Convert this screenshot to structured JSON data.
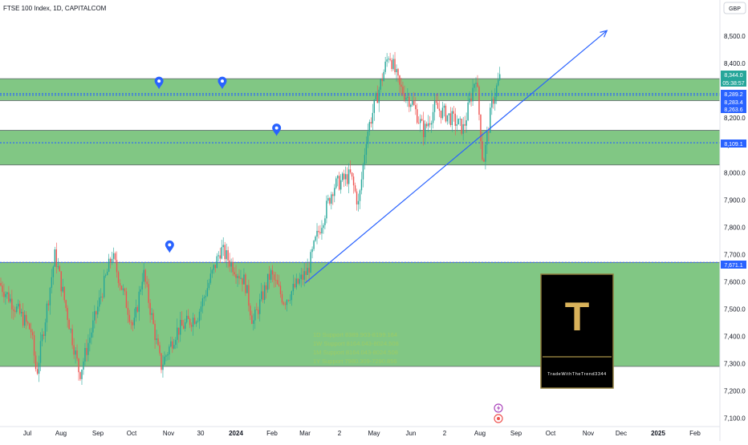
{
  "header": {
    "title": "FTSE 100 Index, 1D, CAPITALCOM",
    "currency": "GBP"
  },
  "colors": {
    "up": "#26a69a",
    "down": "#ef5350",
    "zone": "#4caf50",
    "level": "#2962ff",
    "trend": "#2962ff"
  },
  "chart_data": {
    "type": "candlestick",
    "ylim": [
      7100,
      8550
    ],
    "y_ticks": [
      "8,500.0",
      "8,400.0",
      "8,200.0",
      "8,100.0",
      "8,000.0",
      "7,900.0",
      "7,800.0",
      "7,700.0",
      "7,600.0",
      "7,500.0",
      "7,400.0",
      "7,300.0",
      "7,200.0",
      "7,100.0"
    ],
    "x_ticks": [
      "Jul",
      "Aug",
      "Sep",
      "Oct",
      "Nov",
      "30",
      "2024",
      "Feb",
      "Mar",
      "2",
      "May",
      "Jun",
      "2",
      "Aug",
      "Sep",
      "Oct",
      "Nov",
      "Dec",
      "2025",
      "Feb"
    ],
    "zones": [
      {
        "low": 8263.6,
        "high": 8344.0
      },
      {
        "low": 8028,
        "high": 8155
      },
      {
        "low": 7290,
        "high": 7671.1
      }
    ],
    "level_lines": [
      8289.2,
      8283.4,
      8109.1,
      7671.1
    ],
    "price_labels": [
      {
        "text": "8,344.0",
        "kind": "last"
      },
      {
        "text": "05:38:57",
        "kind": "countdown"
      },
      {
        "text": "8,289.2",
        "kind": "level"
      },
      {
        "text": "8,283.4",
        "kind": "level"
      },
      {
        "text": "8,263.6",
        "kind": "level"
      },
      {
        "text": "8,109.1",
        "kind": "level"
      },
      {
        "text": "7,671.1",
        "kind": "level"
      }
    ],
    "support_text": [
      "1D Support 8389.903-8199.164",
      "1W Support 8164.043-8024.508",
      "1M Support 8164.043-8024.508",
      "1Y Support 7980.309-7290.856"
    ],
    "trend_line": {
      "from": {
        "x": "2024-03-01",
        "y": 7595
      },
      "to": {
        "x": "2024-11-18",
        "y": 8520
      }
    },
    "markers": [
      {
        "date": "2023-10-24",
        "price": 8300
      },
      {
        "date": "2023-12-20",
        "price": 8300
      },
      {
        "date": "2024-02-05",
        "price": 8128
      },
      {
        "date": "2023-11-02",
        "price": 7700
      }
    ],
    "watermark": {
      "letter": "T",
      "caption": "TradeWithTheTrend3344"
    }
  }
}
